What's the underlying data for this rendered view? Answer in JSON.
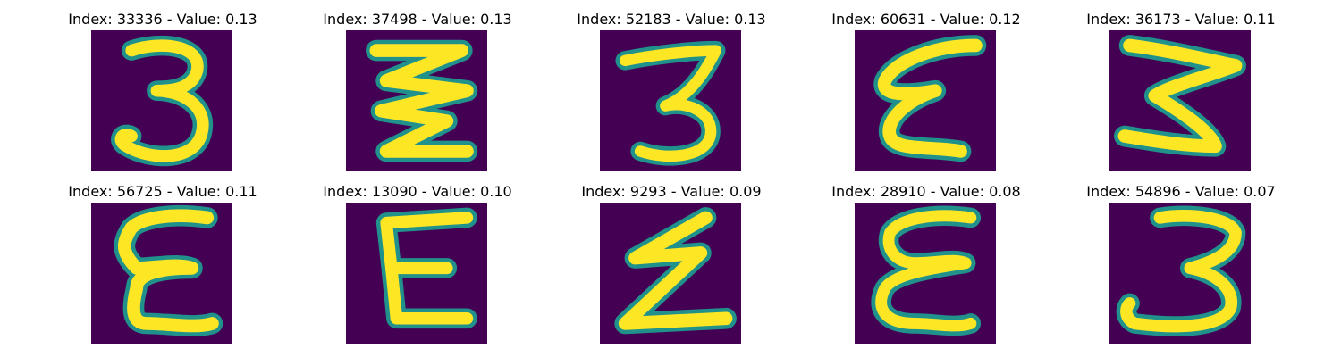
{
  "colormap": {
    "background": "#440154",
    "edge": "#21918c",
    "mid": "#5ec962",
    "peak": "#fde725"
  },
  "samples": [
    {
      "title": "Index: 33336 - Value: 0.13",
      "glyph": "3",
      "icon": "digit-3-image"
    },
    {
      "title": "Index: 37498 - Value: 0.13",
      "glyph": "zigzag-3",
      "icon": "digit-3-zigzag-image"
    },
    {
      "title": "Index: 52183 - Value: 0.13",
      "glyph": "3",
      "icon": "digit-3-image"
    },
    {
      "title": "Index: 60631 - Value: 0.12",
      "glyph": "epsilon",
      "icon": "epsilon-image"
    },
    {
      "title": "Index: 36173 - Value: 0.11",
      "glyph": "3",
      "icon": "digit-3-image"
    },
    {
      "title": "Index: 56725 - Value: 0.11",
      "glyph": "E",
      "icon": "letter-e-image"
    },
    {
      "title": "Index: 13090 - Value: 0.10",
      "glyph": "E",
      "icon": "letter-e-image"
    },
    {
      "title": "Index: 9293 - Value: 0.09",
      "glyph": "Z",
      "icon": "zigzag-image"
    },
    {
      "title": "Index: 28910 - Value: 0.08",
      "glyph": "E",
      "icon": "letter-e-image"
    },
    {
      "title": "Index: 54896 - Value: 0.07",
      "glyph": "3",
      "icon": "digit-3-image"
    }
  ]
}
